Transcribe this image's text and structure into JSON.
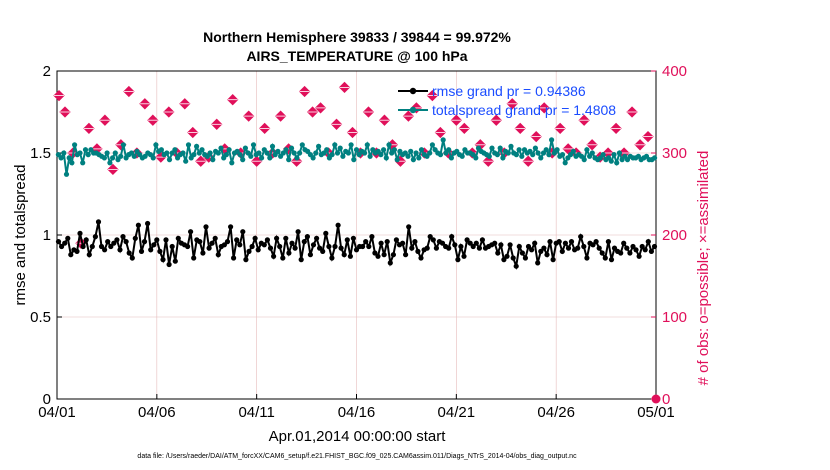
{
  "title_line1": "Northern Hemisphere 39833 / 39844 = 99.972%",
  "title_line2": "AIRS_TEMPERATURE @ 100 hPa",
  "xlabel": "Apr.01,2014 00:00:00 start",
  "ylabel_left": "rmse and totalspread",
  "ylabel_right": "# of obs: o=possible; ×=assimilated",
  "footer": "data file: /Users/raeder/DAI/ATM_forcXX/CAM6_setup/f.e21.FHIST_BGC.f09_025.CAM6assim.011/Diags_NTrS_2014-04/obs_diag_output.nc",
  "colors": {
    "rmse": "#000000",
    "spread": "#008080",
    "obs": "#e0105a",
    "legend_text": "#1a4cff",
    "grid": "#e6bcbc"
  },
  "chart_data": {
    "type": "line",
    "x_unit": "days since 04/01 start",
    "xlim": [
      0,
      30
    ],
    "ylim_left": [
      0,
      2
    ],
    "ylim_right": [
      0,
      400
    ],
    "x_ticks": [
      0,
      5,
      10,
      15,
      20,
      25,
      30
    ],
    "x_tick_labels": [
      "04/01",
      "04/06",
      "04/11",
      "04/16",
      "04/21",
      "04/26",
      "05/01"
    ],
    "y_ticks_left": [
      0,
      0.5,
      1,
      1.5,
      2
    ],
    "y_tick_labels_left": [
      "0",
      "0.5",
      "1",
      "1.5",
      "2"
    ],
    "y_ticks_right": [
      0,
      100,
      200,
      300,
      400
    ],
    "y_tick_labels_right": [
      "0",
      "100",
      "200",
      "300",
      "400"
    ],
    "grid": true,
    "legend_position": "top-right",
    "series": [
      {
        "name": "rmse grand pr = 0.94386",
        "axis": "left",
        "marker": "circle",
        "values": [
          0.96,
          0.93,
          0.95,
          0.98,
          0.88,
          0.91,
          0.9,
          1.01,
          0.93,
          0.97,
          0.88,
          0.93,
          0.99,
          1.08,
          0.93,
          0.91,
          0.96,
          0.93,
          0.95,
          0.97,
          0.91,
          0.99,
          0.96,
          0.89,
          0.86,
          0.98,
          1.06,
          0.9,
          0.96,
          1.07,
          0.91,
          0.94,
          0.97,
          0.9,
          0.85,
          0.97,
          0.82,
          0.93,
          0.84,
          0.98,
          0.95,
          0.94,
          0.93,
          1.02,
          0.86,
          0.97,
          0.96,
          0.89,
          1.05,
          0.92,
          0.95,
          0.98,
          0.88,
          0.93,
          0.94,
          0.96,
          1.05,
          0.86,
          0.97,
          0.94,
          1.02,
          0.85,
          0.9,
          0.93,
          0.98,
          0.91,
          0.95,
          0.94,
          0.97,
          0.92,
          0.87,
          0.98,
          0.93,
          0.86,
          0.98,
          0.89,
          0.95,
          0.92,
          1.02,
          0.85,
          0.96,
          0.99,
          0.88,
          0.94,
          0.98,
          0.92,
          0.9,
          1.01,
          0.93,
          0.86,
          0.93,
          1.06,
          0.92,
          0.88,
          0.97,
          0.87,
          0.98,
          0.91,
          0.93,
          0.93,
          0.96,
          0.93,
          0.99,
          0.89,
          0.87,
          0.95,
          0.88,
          0.96,
          0.83,
          0.88,
          0.97,
          0.94,
          0.95,
          0.88,
          1.05,
          0.92,
          0.96,
          0.9,
          0.86,
          0.91,
          0.92,
          0.99,
          0.97,
          0.92,
          0.96,
          0.95,
          0.93,
          0.92,
          0.99,
          0.94,
          0.85,
          0.93,
          0.87,
          0.97,
          0.95,
          0.93,
          0.95,
          0.92,
          0.97,
          0.92,
          0.93,
          0.94,
          0.95,
          0.89,
          0.94,
          0.85,
          0.87,
          0.94,
          0.86,
          0.81,
          0.93,
          0.89,
          0.86,
          0.93,
          0.91,
          0.95,
          0.83,
          0.9,
          0.92,
          0.88,
          0.96,
          0.85,
          0.95,
          0.96,
          0.9,
          0.95,
          0.92,
          0.96,
          0.91,
          0.92,
          0.99,
          0.93,
          0.86,
          0.95,
          0.94,
          0.96,
          0.92,
          0.89,
          0.86,
          0.96,
          0.85,
          0.92,
          0.9,
          0.89,
          0.95,
          0.92,
          0.89,
          0.93,
          0.91,
          0.87,
          0.93,
          0.91,
          0.96,
          0.9,
          0.93
        ]
      },
      {
        "name": "totalspread grand pr = 1.4808",
        "axis": "left",
        "marker": "circle",
        "values": [
          1.49,
          1.47,
          1.5,
          1.37,
          1.47,
          1.44,
          1.55,
          1.49,
          1.5,
          1.44,
          1.52,
          1.49,
          1.52,
          1.5,
          1.5,
          1.49,
          1.48,
          1.47,
          1.5,
          1.44,
          1.47,
          1.5,
          1.46,
          1.48,
          1.55,
          1.47,
          1.49,
          1.5,
          1.48,
          1.51,
          1.49,
          1.47,
          1.48,
          1.5,
          1.49,
          1.47,
          1.55,
          1.51,
          1.52,
          1.49,
          1.5,
          1.46,
          1.5,
          1.52,
          1.47,
          1.49,
          1.5,
          1.45,
          1.55,
          1.47,
          1.49,
          1.54,
          1.5,
          1.52,
          1.49,
          1.48,
          1.5,
          1.46,
          1.51,
          1.5,
          1.53,
          1.47,
          1.49,
          1.52,
          1.44,
          1.5,
          1.51,
          1.49,
          1.46,
          1.53,
          1.5,
          1.48,
          1.55,
          1.49,
          1.5,
          1.47,
          1.52,
          1.5,
          1.47,
          1.54,
          1.49,
          1.51,
          1.48,
          1.5,
          1.52,
          1.46,
          1.53,
          1.5,
          1.47,
          1.5,
          1.55,
          1.52,
          1.51,
          1.49,
          1.47,
          1.5,
          1.54,
          1.49,
          1.5,
          1.52,
          1.47,
          1.49,
          1.55,
          1.5,
          1.53,
          1.48,
          1.51,
          1.5,
          1.55,
          1.46,
          1.52,
          1.49,
          1.51,
          1.5,
          1.55,
          1.48,
          1.52,
          1.5,
          1.51,
          1.49,
          1.52,
          1.47,
          1.55,
          1.5,
          1.52,
          1.46,
          1.51,
          1.49,
          1.5,
          1.48,
          1.51,
          1.46,
          1.5,
          1.47,
          1.52,
          1.49,
          1.48,
          1.5,
          1.55,
          1.52,
          1.5,
          1.49,
          1.58,
          1.5,
          1.52,
          1.47,
          1.5,
          1.51,
          1.49,
          1.48,
          1.52,
          1.5,
          1.5,
          1.49,
          1.47,
          1.53,
          1.51,
          1.5,
          1.49,
          1.48,
          1.53,
          1.5,
          1.49,
          1.53,
          1.47,
          1.51,
          1.5,
          1.54,
          1.5,
          1.49,
          1.52,
          1.48,
          1.52,
          1.5,
          1.51,
          1.49,
          1.53,
          1.5,
          1.47,
          1.5,
          1.52,
          1.49,
          1.58,
          1.5,
          1.52,
          1.48,
          1.49,
          1.44,
          1.47,
          1.49,
          1.51,
          1.48,
          1.49,
          1.48,
          1.46,
          1.52,
          1.48,
          1.5,
          1.47,
          1.46,
          1.47,
          1.49,
          1.46,
          1.47,
          1.45,
          1.49,
          1.44,
          1.5,
          1.46,
          1.48,
          1.46,
          1.48,
          1.47,
          1.47,
          1.48,
          1.46,
          1.47,
          1.48,
          1.46,
          1.46,
          1.47
        ]
      },
      {
        "name": "obs assimilated",
        "axis": "right",
        "marker": "cross",
        "x": [
          0.1,
          0.4,
          0.8,
          1.2,
          1.6,
          2.0,
          2.4,
          2.8,
          3.2,
          3.6,
          4.0,
          4.4,
          4.8,
          5.2,
          5.6,
          6.0,
          6.4,
          6.8,
          7.2,
          7.6,
          8.0,
          8.4,
          8.8,
          9.2,
          9.6,
          10.0,
          10.4,
          10.8,
          11.2,
          11.6,
          12.0,
          12.4,
          12.8,
          13.2,
          13.6,
          14.0,
          14.4,
          14.8,
          15.2,
          15.6,
          16.0,
          16.4,
          16.8,
          17.2,
          17.6,
          18.0,
          18.4,
          18.8,
          19.2,
          19.6,
          20.0,
          20.4,
          20.8,
          21.2,
          21.6,
          22.0,
          22.4,
          22.8,
          23.2,
          23.6,
          24.0,
          24.4,
          24.8,
          25.2,
          25.6,
          26.0,
          26.4,
          26.8,
          27.2,
          27.6,
          28.0,
          28.4,
          28.8,
          29.2,
          29.6,
          30.0
        ],
        "values": [
          370,
          350,
          300,
          190,
          330,
          305,
          340,
          280,
          310,
          375,
          300,
          360,
          340,
          295,
          350,
          300,
          360,
          325,
          290,
          295,
          335,
          305,
          365,
          300,
          345,
          290,
          330,
          300,
          345,
          305,
          290,
          375,
          350,
          355,
          300,
          335,
          380,
          325,
          300,
          350,
          300,
          340,
          310,
          290,
          345,
          355,
          300,
          370,
          325,
          300,
          340,
          330,
          300,
          310,
          290,
          340,
          300,
          360,
          330,
          290,
          320,
          355,
          300,
          330,
          305,
          300,
          340,
          310,
          295,
          300,
          330,
          300,
          350,
          310,
          320,
          0
        ]
      }
    ]
  }
}
